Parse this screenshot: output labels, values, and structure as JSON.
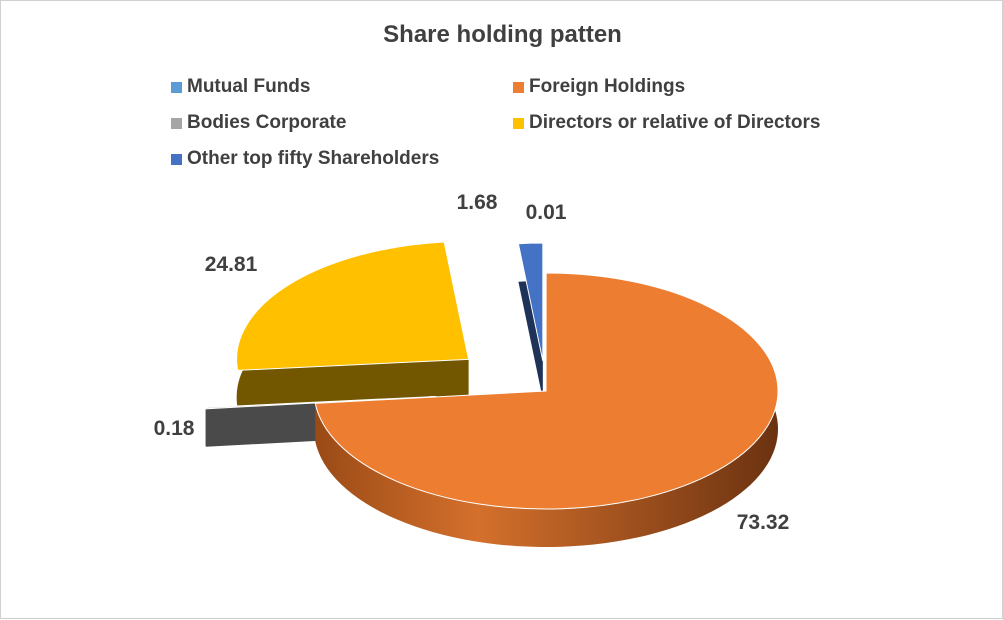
{
  "chart_data": {
    "type": "pie",
    "title": "Share holding patten",
    "legend_position": "top",
    "slices": [
      {
        "name": "Mutual Funds",
        "value": 0.01,
        "color": "#5B9BD5"
      },
      {
        "name": "Foreign Holdings",
        "value": 73.32,
        "color": "#ED7D31"
      },
      {
        "name": "Bodies Corporate",
        "value": 0.18,
        "color": "#A5A5A5"
      },
      {
        "name": "Directors or relative of Directors",
        "value": 24.81,
        "color": "#FFC000"
      },
      {
        "name": "Other top fifty Shareholders",
        "value": 1.68,
        "color": "#4472C4"
      }
    ],
    "data_labels": [
      "0.01",
      "73.32",
      "0.18",
      "24.81",
      "1.68"
    ]
  }
}
